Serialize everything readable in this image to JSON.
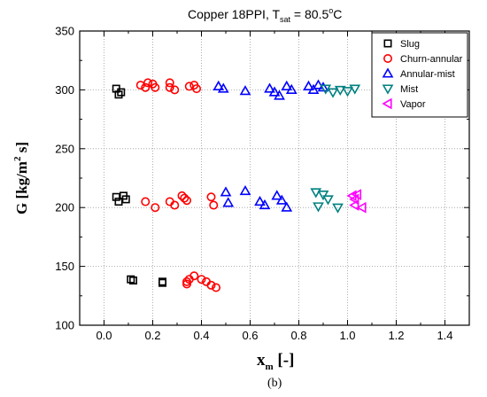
{
  "chart_data": {
    "type": "scatter",
    "title_main": "Copper 18PPI, T",
    "title_sub": "sat",
    "title_value": " = 80.5",
    "title_sup": "o",
    "title_unit": "C",
    "ylabel_main": "G [kg/m",
    "ylabel_sup": "2",
    "ylabel_end": " s]",
    "xlabel_main": "x",
    "xlabel_sub": "m",
    "xlabel_end": " [-]",
    "panel_label": "(b)",
    "xlim": [
      -0.1,
      1.5
    ],
    "ylim": [
      100,
      350
    ],
    "xticks": [
      0.0,
      0.2,
      0.4,
      0.6,
      0.8,
      1.0,
      1.2,
      1.4
    ],
    "xtick_labels": [
      "0.0",
      "0.2",
      "0.4",
      "0.6",
      "0.8",
      "1.0",
      "1.2",
      "1.4"
    ],
    "yticks": [
      100,
      150,
      200,
      250,
      300,
      350
    ],
    "ytick_labels": [
      "100",
      "150",
      "200",
      "250",
      "300",
      "350"
    ],
    "grid": true,
    "legend_position": "top-right",
    "series": [
      {
        "name": "Slug",
        "marker": "square",
        "color": "#000000",
        "points": [
          [
            0.05,
            301
          ],
          [
            0.06,
            296
          ],
          [
            0.07,
            298
          ],
          [
            0.05,
            209
          ],
          [
            0.06,
            205
          ],
          [
            0.08,
            210
          ],
          [
            0.09,
            207
          ],
          [
            0.11,
            139
          ],
          [
            0.12,
            138
          ],
          [
            0.24,
            137
          ],
          [
            0.24,
            136
          ]
        ]
      },
      {
        "name": "Churn-annular",
        "marker": "circle",
        "color": "#ff0000",
        "points": [
          [
            0.15,
            304
          ],
          [
            0.17,
            302
          ],
          [
            0.18,
            306
          ],
          [
            0.2,
            305
          ],
          [
            0.21,
            302
          ],
          [
            0.27,
            306
          ],
          [
            0.27,
            302
          ],
          [
            0.29,
            300
          ],
          [
            0.35,
            303
          ],
          [
            0.37,
            304
          ],
          [
            0.38,
            301
          ],
          [
            0.17,
            205
          ],
          [
            0.21,
            200
          ],
          [
            0.27,
            205
          ],
          [
            0.29,
            202
          ],
          [
            0.32,
            210
          ],
          [
            0.33,
            208
          ],
          [
            0.34,
            206
          ],
          [
            0.44,
            209
          ],
          [
            0.45,
            202
          ],
          [
            0.34,
            137
          ],
          [
            0.34,
            135
          ],
          [
            0.35,
            139
          ],
          [
            0.37,
            142
          ],
          [
            0.4,
            139
          ],
          [
            0.42,
            137
          ],
          [
            0.44,
            134
          ],
          [
            0.46,
            132
          ]
        ]
      },
      {
        "name": "Annular-mist",
        "marker": "triangle-up",
        "color": "#0000ff",
        "points": [
          [
            0.47,
            303
          ],
          [
            0.49,
            301
          ],
          [
            0.58,
            299
          ],
          [
            0.68,
            301
          ],
          [
            0.7,
            298
          ],
          [
            0.72,
            295
          ],
          [
            0.75,
            303
          ],
          [
            0.77,
            300
          ],
          [
            0.84,
            303
          ],
          [
            0.86,
            300
          ],
          [
            0.88,
            304
          ],
          [
            0.9,
            302
          ],
          [
            0.5,
            213
          ],
          [
            0.51,
            204
          ],
          [
            0.58,
            214
          ],
          [
            0.64,
            205
          ],
          [
            0.66,
            202
          ],
          [
            0.71,
            210
          ],
          [
            0.73,
            206
          ],
          [
            0.75,
            200
          ]
        ]
      },
      {
        "name": "Mist",
        "marker": "triangle-down",
        "color": "#008080",
        "points": [
          [
            0.91,
            301
          ],
          [
            0.94,
            298
          ],
          [
            0.97,
            300
          ],
          [
            1.0,
            299
          ],
          [
            1.03,
            301
          ],
          [
            0.87,
            213
          ],
          [
            0.88,
            201
          ],
          [
            0.9,
            211
          ],
          [
            0.92,
            207
          ],
          [
            0.96,
            200
          ]
        ]
      },
      {
        "name": "Vapor",
        "marker": "triangle-left",
        "color": "#ff00ff",
        "points": [
          [
            1.02,
            210
          ],
          [
            1.03,
            207
          ],
          [
            1.04,
            211
          ],
          [
            1.03,
            202
          ],
          [
            1.06,
            200
          ]
        ]
      }
    ]
  }
}
